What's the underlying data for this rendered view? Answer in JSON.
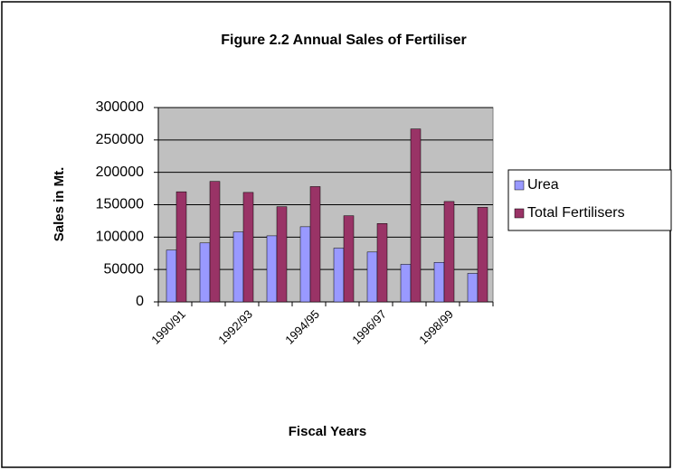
{
  "chart_data": {
    "type": "bar",
    "title": "Figure 2.2 Annual Sales of Fertiliser",
    "x_label": "Fiscal Years",
    "y_label": "Sales in Mt.",
    "categories": [
      "1990/91",
      null,
      "1992/93",
      null,
      "1994/95",
      null,
      "1996/97",
      null,
      "1998/99",
      null
    ],
    "series": [
      {
        "name": "Urea",
        "color": "#9999ff",
        "values": [
          80000,
          91000,
          108000,
          102000,
          116000,
          83000,
          77000,
          58000,
          61000,
          44000
        ]
      },
      {
        "name": "Total Fertilisers",
        "color": "#993366",
        "values": [
          170000,
          186000,
          169000,
          147000,
          178000,
          133000,
          121000,
          267000,
          155000,
          146000
        ]
      }
    ],
    "ylim": [
      0,
      300000
    ],
    "yticks": [
      0,
      50000,
      100000,
      150000,
      200000,
      250000,
      300000
    ],
    "grid": true,
    "plot_background": "#c0c0c0",
    "legend": "right"
  }
}
